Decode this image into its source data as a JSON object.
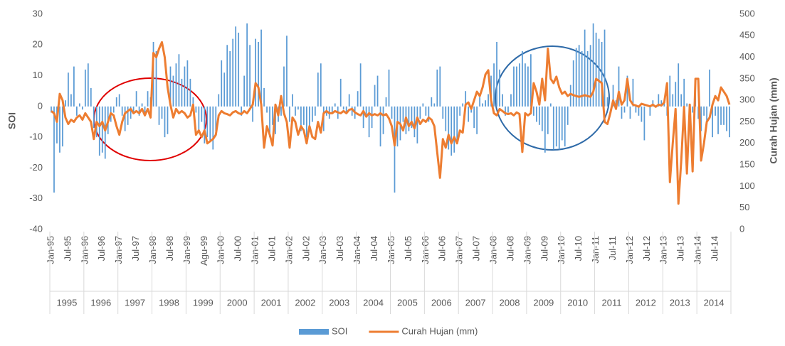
{
  "chart_data": {
    "type": "bar-line",
    "y_label": "SOI",
    "y2_label": "Curah Hujan (mm)",
    "ylim": [
      -40,
      30
    ],
    "yticks": [
      -40,
      -30,
      -20,
      -10,
      0,
      10,
      20,
      30
    ],
    "y2lim": [
      0,
      500
    ],
    "y2ticks": [
      0,
      50,
      100,
      150,
      200,
      250,
      300,
      350,
      400,
      450,
      500
    ],
    "years": [
      "1995",
      "1996",
      "1997",
      "1998",
      "1999",
      "2000",
      "2001",
      "2002",
      "2003",
      "2004",
      "2005",
      "2006",
      "2007",
      "2008",
      "2009",
      "2010",
      "2011",
      "2012",
      "2013",
      "2014"
    ],
    "categories": [
      "Jan-95",
      null,
      null,
      null,
      null,
      null,
      "Jul-95",
      null,
      null,
      null,
      null,
      null,
      "Jan-96",
      null,
      null,
      null,
      null,
      null,
      "Jul-96",
      null,
      null,
      null,
      null,
      null,
      "Jan-97",
      null,
      null,
      null,
      null,
      null,
      "Jul-97",
      null,
      null,
      null,
      null,
      null,
      "Jan-98",
      null,
      null,
      null,
      null,
      null,
      "Jul-98",
      null,
      null,
      null,
      null,
      null,
      "Jan-99",
      null,
      null,
      null,
      null,
      null,
      "Agu-99",
      null,
      null,
      null,
      null,
      null,
      "Jan-00",
      null,
      null,
      null,
      null,
      null,
      "Jul-00",
      null,
      null,
      null,
      null,
      null,
      "Jan-01",
      null,
      null,
      null,
      null,
      null,
      "Jul-01",
      null,
      null,
      null,
      null,
      null,
      "Jan-02",
      null,
      null,
      null,
      null,
      null,
      "Jul-02",
      null,
      null,
      null,
      null,
      null,
      "Jan-03",
      null,
      null,
      null,
      null,
      null,
      "Jul-03",
      null,
      null,
      null,
      null,
      null,
      "Jan-04",
      null,
      null,
      null,
      null,
      null,
      "Jul-04",
      null,
      null,
      null,
      null,
      null,
      "Jan-05",
      null,
      null,
      null,
      null,
      null,
      "Jul-05",
      null,
      null,
      null,
      null,
      null,
      "Jan-06",
      null,
      null,
      null,
      null,
      null,
      "Jul-06",
      null,
      null,
      null,
      null,
      null,
      "Jan-07",
      null,
      null,
      null,
      null,
      null,
      "Jul-07",
      null,
      null,
      null,
      null,
      null,
      "Jan-08",
      null,
      null,
      null,
      null,
      null,
      "Jul-08",
      null,
      null,
      null,
      null,
      null,
      "Jan-09",
      null,
      null,
      null,
      null,
      null,
      "Jul-09",
      null,
      null,
      null,
      null,
      null,
      "Jan-10",
      null,
      null,
      null,
      null,
      null,
      "Jul-10",
      null,
      null,
      null,
      null,
      null,
      "Jan-11",
      null,
      null,
      null,
      null,
      null,
      "Jul-11",
      null,
      null,
      null,
      null,
      null,
      "Jan-12",
      null,
      null,
      null,
      null,
      null,
      "Jul-12",
      null,
      null,
      null,
      null,
      null,
      "Jan-13",
      null,
      null,
      null,
      null,
      null,
      "Jul-13",
      null,
      null,
      null,
      null,
      null,
      "Jan-14",
      null,
      null,
      null,
      null,
      null,
      "Jul-14",
      null,
      null,
      null,
      null,
      null
    ],
    "series": [
      {
        "name": "SOI",
        "type": "bar",
        "color": "#5b9bd5",
        "values": [
          -2,
          -28,
          -12,
          -15,
          -13,
          2,
          11,
          4,
          13,
          -3,
          1,
          -1,
          12,
          14,
          6,
          -7,
          -10,
          -16,
          -15,
          -17,
          -9,
          -5,
          -2,
          3,
          4,
          -3,
          -8,
          -6,
          -4,
          -2,
          5,
          -3,
          1,
          -3,
          5,
          3,
          21,
          18,
          -6,
          -4,
          -10,
          -9,
          13,
          10,
          14,
          17,
          9,
          13,
          15,
          9,
          3,
          -2,
          -8,
          -5,
          -12,
          -10,
          -11,
          -14,
          -8,
          4,
          15,
          11,
          20,
          18,
          22,
          26,
          24,
          -3,
          10,
          27,
          20,
          -5,
          22,
          21,
          25,
          6,
          -2,
          -10,
          -6,
          -9,
          -5,
          -3,
          13,
          23,
          -5,
          4,
          -3,
          -1,
          -8,
          -6,
          -10,
          -7,
          -5,
          -3,
          11,
          14,
          -8,
          -3,
          -4,
          -2,
          1,
          -4,
          9,
          -1,
          -2,
          4,
          -3,
          -4,
          5,
          14,
          -7,
          -3,
          -10,
          -7,
          7,
          10,
          -13,
          -9,
          3,
          12,
          -4,
          -28,
          -13,
          -11,
          -5,
          -9,
          -8,
          -7,
          -10,
          -12,
          -4,
          1,
          -3,
          -5,
          3,
          1,
          12,
          13,
          -4,
          -8,
          -14,
          -16,
          -15,
          -12,
          -3,
          1,
          5,
          -5,
          -2,
          -7,
          -9,
          3,
          1,
          2,
          4,
          10,
          14,
          21,
          12,
          4,
          -3,
          -2,
          4,
          13,
          13,
          14,
          18,
          14,
          13,
          17,
          -3,
          -5,
          -6,
          -8,
          -15,
          -9,
          1,
          -14,
          -13,
          -14,
          -11,
          -13,
          -6,
          7,
          15,
          19,
          20,
          18,
          25,
          18,
          20,
          27,
          24,
          22,
          21,
          25,
          3,
          0,
          7,
          2,
          13,
          -4,
          -2,
          10,
          -4,
          9,
          -2,
          -3,
          -5,
          -11,
          0,
          -3,
          2,
          0,
          4,
          2,
          1,
          -3,
          10,
          4,
          8,
          14,
          4,
          9,
          1,
          -3,
          -2,
          9,
          -4,
          -8,
          -3,
          -5,
          12,
          -10,
          -3,
          -9,
          -6,
          -6,
          -8,
          -10
        ]
      },
      {
        "name": "Curah Hujan (mm)",
        "type": "line",
        "axis": "y2",
        "color": "#ed7d31",
        "values": [
          275,
          270,
          250,
          315,
          300,
          260,
          245,
          255,
          250,
          260,
          265,
          255,
          270,
          260,
          250,
          210,
          250,
          240,
          250,
          230,
          250,
          270,
          265,
          240,
          220,
          250,
          270,
          275,
          280,
          270,
          275,
          270,
          280,
          265,
          280,
          260,
          410,
          400,
          420,
          435,
          400,
          330,
          290,
          260,
          280,
          270,
          275,
          270,
          260,
          265,
          290,
          220,
          230,
          215,
          230,
          200,
          205,
          210,
          220,
          265,
          275,
          270,
          268,
          265,
          272,
          275,
          270,
          268,
          275,
          270,
          280,
          290,
          340,
          330,
          290,
          190,
          240,
          220,
          195,
          290,
          265,
          310,
          270,
          250,
          190,
          260,
          250,
          220,
          240,
          230,
          200,
          240,
          215,
          210,
          250,
          225,
          270,
          275,
          270,
          270,
          275,
          272,
          270,
          275,
          270,
          278,
          280,
          272,
          268,
          265,
          275,
          262,
          270,
          265,
          268,
          265,
          270,
          265,
          268,
          258,
          240,
          195,
          250,
          245,
          230,
          260,
          240,
          250,
          235,
          260,
          245,
          255,
          250,
          260,
          255,
          240,
          180,
          120,
          210,
          190,
          220,
          200,
          215,
          200,
          230,
          225,
          290,
          295,
          280,
          300,
          320,
          310,
          330,
          360,
          370,
          300,
          270,
          265,
          280,
          275,
          270,
          268,
          270,
          265,
          272,
          268,
          180,
          270,
          265,
          270,
          340,
          320,
          290,
          350,
          300,
          420,
          350,
          340,
          355,
          330,
          315,
          320,
          310,
          315,
          312,
          310,
          308,
          310,
          312,
          310,
          308,
          320,
          350,
          345,
          340,
          250,
          245,
          270,
          300,
          280,
          320,
          290,
          300,
          350,
          300,
          290,
          288,
          285,
          292,
          290,
          288,
          286,
          290,
          285,
          290,
          288,
          295,
          340,
          110,
          200,
          280,
          60,
          160,
          285,
          130,
          290,
          135,
          350,
          350,
          160,
          200,
          250,
          260,
          290,
          310,
          300,
          330,
          320,
          310,
          290
        ]
      }
    ]
  }
}
